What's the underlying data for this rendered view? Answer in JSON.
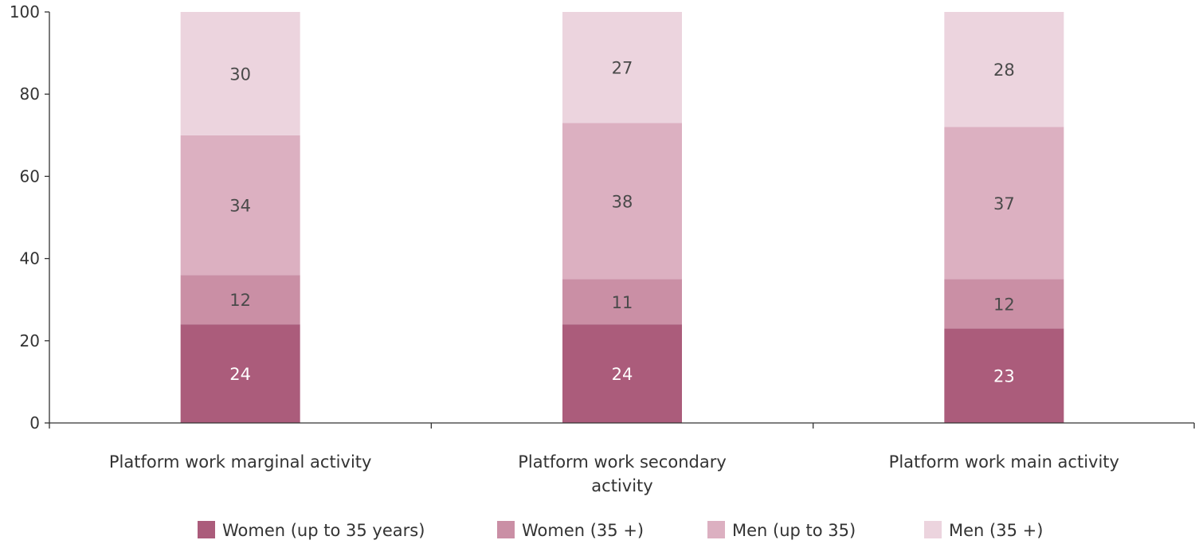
{
  "chart_data": {
    "type": "bar",
    "stacked": true,
    "title": "",
    "xlabel": "",
    "ylabel": "",
    "ylim": [
      0,
      100
    ],
    "yticks": [
      0,
      20,
      40,
      60,
      80,
      100
    ],
    "grid": false,
    "legend_position": "bottom",
    "categories": [
      [
        "Platform work marginal activity"
      ],
      [
        "Platform work secondary",
        "activity"
      ],
      [
        "Platform work main activity"
      ]
    ],
    "series": [
      {
        "name": "Women (up to 35 years)",
        "values": [
          24,
          24,
          23
        ],
        "color": "#ab5c7b",
        "label_color": "#ffffff"
      },
      {
        "name": "Women (35 +)",
        "values": [
          12,
          11,
          12
        ],
        "color": "#ca8fa5",
        "label_color": "#4a4a4a"
      },
      {
        "name": "Men (up to 35)",
        "values": [
          34,
          38,
          37
        ],
        "color": "#dcb0c1",
        "label_color": "#4a4a4a"
      },
      {
        "name": "Men (35 +)",
        "values": [
          30,
          27,
          28
        ],
        "color": "#ecd4de",
        "label_color": "#4a4a4a"
      }
    ]
  }
}
